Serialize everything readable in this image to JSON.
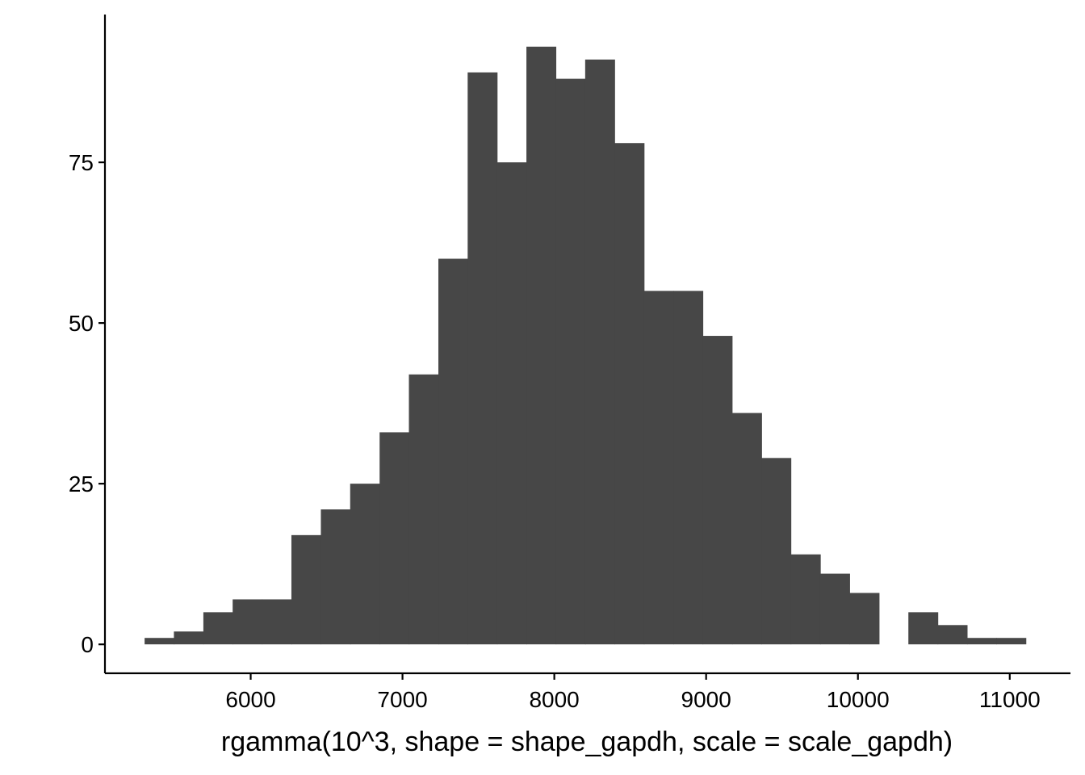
{
  "chart_data": {
    "type": "bar",
    "subtype": "histogram",
    "title": "",
    "xlabel": "rgamma(10^3, shape = shape_gapdh, scale = scale_gapdh)",
    "ylabel": "",
    "bar_color": "#474747",
    "axis_color": "#000000",
    "grid": false,
    "bin_width": 193.5,
    "xlim": [
      5040,
      11400
    ],
    "ylim": [
      -4.5,
      98
    ],
    "x_ticks": [
      6000,
      7000,
      8000,
      9000,
      10000,
      11000
    ],
    "x_tick_labels": [
      "6000",
      "7000",
      "8000",
      "9000",
      "10000",
      "11000"
    ],
    "y_ticks": [
      0,
      25,
      50,
      75
    ],
    "y_tick_labels": [
      "0",
      "25",
      "50",
      "75"
    ],
    "bins": [
      {
        "x": 5398,
        "count": 1
      },
      {
        "x": 5591,
        "count": 2
      },
      {
        "x": 5785,
        "count": 5
      },
      {
        "x": 5978,
        "count": 7
      },
      {
        "x": 6172,
        "count": 7
      },
      {
        "x": 6365,
        "count": 17
      },
      {
        "x": 6559,
        "count": 21
      },
      {
        "x": 6752,
        "count": 25
      },
      {
        "x": 6946,
        "count": 33
      },
      {
        "x": 7139,
        "count": 42
      },
      {
        "x": 7333,
        "count": 60
      },
      {
        "x": 7526,
        "count": 89
      },
      {
        "x": 7720,
        "count": 75
      },
      {
        "x": 7913,
        "count": 93
      },
      {
        "x": 8107,
        "count": 88
      },
      {
        "x": 8300,
        "count": 91
      },
      {
        "x": 8494,
        "count": 78
      },
      {
        "x": 8687,
        "count": 55
      },
      {
        "x": 8881,
        "count": 55
      },
      {
        "x": 9074,
        "count": 48
      },
      {
        "x": 9268,
        "count": 36
      },
      {
        "x": 9461,
        "count": 29
      },
      {
        "x": 9655,
        "count": 14
      },
      {
        "x": 9848,
        "count": 11
      },
      {
        "x": 10042,
        "count": 8
      },
      {
        "x": 10235,
        "count": 0
      },
      {
        "x": 10429,
        "count": 5
      },
      {
        "x": 10622,
        "count": 3
      },
      {
        "x": 10816,
        "count": 1
      },
      {
        "x": 11009,
        "count": 1
      }
    ]
  }
}
